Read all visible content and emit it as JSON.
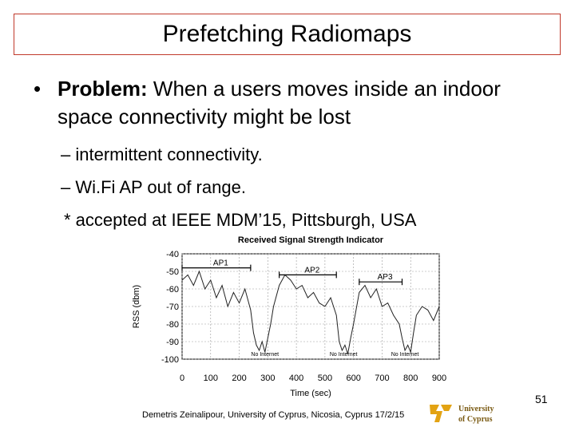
{
  "slide": {
    "title": "Prefetching Radiomaps",
    "bullet": {
      "marker": "•",
      "bold": "Problem:",
      "text": " When a users moves inside an indoor space connectivity might be lost"
    },
    "subbullets": [
      "– intermittent connectivity.",
      "– Wi.Fi AP out of range.",
      "* accepted at IEEE MDM’15, Pittsburgh, USA"
    ],
    "footer": "Demetris Zeinalipour, University of Cyprus, Nicosia, Cyprus 17/2/15",
    "page_number": "51",
    "logo_text": [
      "University",
      "of Cyprus"
    ]
  },
  "chart_data": {
    "type": "line",
    "title": "Received Signal Strength Indicator",
    "xlabel": "Time (sec)",
    "ylabel": "RSS (dbm)",
    "xlim": [
      0,
      900
    ],
    "ylim": [
      -100,
      -40
    ],
    "xticks": [
      "0",
      "100",
      "200",
      "300",
      "400",
      "500",
      "600",
      "700",
      "800",
      "900"
    ],
    "yticks": [
      "-40",
      "-50",
      "-60",
      "-70",
      "-80",
      "-90",
      "-100"
    ],
    "grid": true,
    "annotations": [
      {
        "label": "AP1",
        "x_start": 0,
        "x_end": 240,
        "y": -48
      },
      {
        "label": "AP2",
        "x_start": 340,
        "x_end": 540,
        "y": -52
      },
      {
        "label": "AP3",
        "x_start": 620,
        "x_end": 770,
        "y": -56
      }
    ],
    "no_internet_labels": [
      {
        "label": "No Internet",
        "x": 290
      },
      {
        "label": "No Internet",
        "x": 565
      },
      {
        "label": "No Internet",
        "x": 780
      }
    ],
    "series": [
      {
        "x": [
          0,
          20,
          40,
          60,
          80,
          100,
          120,
          140,
          160,
          180,
          200,
          220,
          240,
          250,
          260,
          270,
          280,
          290,
          300,
          310,
          320,
          340,
          360,
          380,
          400,
          420,
          440,
          460,
          480,
          500,
          520,
          540,
          550,
          560,
          570,
          580,
          590,
          600,
          620,
          640,
          660,
          680,
          700,
          720,
          740,
          760,
          770,
          780,
          790,
          800,
          810,
          820,
          840,
          860,
          880,
          900
        ],
        "values": [
          -55,
          -52,
          -58,
          -50,
          -60,
          -55,
          -65,
          -58,
          -70,
          -62,
          -68,
          -60,
          -72,
          -85,
          -92,
          -95,
          -90,
          -96,
          -88,
          -80,
          -70,
          -58,
          -52,
          -55,
          -60,
          -58,
          -65,
          -62,
          -68,
          -70,
          -65,
          -75,
          -90,
          -95,
          -92,
          -97,
          -88,
          -80,
          -62,
          -58,
          -65,
          -60,
          -70,
          -68,
          -75,
          -80,
          -88,
          -95,
          -92,
          -96,
          -85,
          -75,
          -70,
          -72,
          -78,
          -70
        ]
      }
    ]
  }
}
